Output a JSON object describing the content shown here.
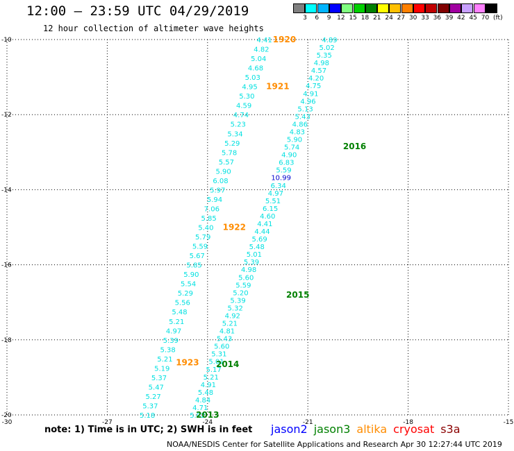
{
  "title": "12:00 – 23:59 UTC 04/29/2019",
  "subtitle": "12 hour collection of altimeter wave heights",
  "color_scale": {
    "unit": "(ft)",
    "bins": [
      {
        "label": "3",
        "color": "#808080"
      },
      {
        "label": "6",
        "color": "#00ffff"
      },
      {
        "label": "9",
        "color": "#00b4ff"
      },
      {
        "label": "12",
        "color": "#0000ff"
      },
      {
        "label": "15",
        "color": "#80ff80"
      },
      {
        "label": "18",
        "color": "#00d000"
      },
      {
        "label": "21",
        "color": "#008000"
      },
      {
        "label": "24",
        "color": "#ffff00"
      },
      {
        "label": "27",
        "color": "#ffc000"
      },
      {
        "label": "30",
        "color": "#ff8000"
      },
      {
        "label": "33",
        "color": "#ff0000"
      },
      {
        "label": "36",
        "color": "#c00000"
      },
      {
        "label": "39",
        "color": "#800000"
      },
      {
        "label": "42",
        "color": "#a000a0"
      },
      {
        "label": "45",
        "color": "#c8a0ff"
      },
      {
        "label": "70",
        "color": "#ff80ff"
      },
      {
        "label": "",
        "color": "#000000"
      }
    ]
  },
  "chart_data": {
    "type": "scatter",
    "title": "12:00 – 23:59 UTC 04/29/2019",
    "subtitle": "12 hour collection of altimeter wave heights",
    "xlabel": "",
    "ylabel": "",
    "xlim": [
      -30,
      -15
    ],
    "ylim": [
      -20,
      -10
    ],
    "x_ticks": [
      -30,
      -27,
      -24,
      -21,
      -18,
      -15
    ],
    "y_ticks": [
      -10,
      -12,
      -14,
      -16,
      -18,
      -20
    ],
    "grid": true,
    "tracks": [
      {
        "name": "altika",
        "color": "#ff8c00",
        "start": [
          -22.3,
          -10.0
        ],
        "end": [
          -25.8,
          -20.0
        ],
        "values": [
          "4.41",
          "4.82",
          "5.04",
          "4.68",
          "5.03",
          "4.95",
          "5.30",
          "4.59",
          "4.74",
          "5.23",
          "5.34",
          "5.29",
          "5.78",
          "5.57",
          "5.90",
          "6.08",
          "5.97",
          "5.94",
          "7.06",
          "5.85",
          "5.40",
          "5.79",
          "5.59",
          "5.67",
          "5.85",
          "5.90",
          "5.54",
          "5.29",
          "5.56",
          "5.48",
          "5.21",
          "4.97",
          "5.39",
          "5.38",
          "5.21",
          "5.19",
          "5.37",
          "5.47",
          "5.27",
          "5.37",
          "5.18"
        ],
        "time_labels": [
          {
            "text": "1920",
            "lat": -10.0,
            "lon": -21.7
          },
          {
            "text": "1921",
            "lat": -11.25,
            "lon": -21.9
          },
          {
            "text": "1922",
            "lat": -15.0,
            "lon": -23.2
          },
          {
            "text": "1923",
            "lat": -18.6,
            "lon": -24.6
          }
        ]
      },
      {
        "name": "jason3",
        "color": "#008000",
        "start": [
          -20.35,
          -10.0
        ],
        "end": [
          -24.3,
          -20.0
        ],
        "values": [
          "4.89",
          "5.02",
          "5.35",
          "4.98",
          "4.57",
          "4.20",
          "4.75",
          "4.91",
          "4.96",
          "5.13",
          "5.43",
          "4.86",
          "4.83",
          "5.90",
          "5.74",
          "4.90",
          "6.83",
          "5.59",
          "10.99",
          "6.34",
          "4.97",
          "5.51",
          "6.15",
          "4.60",
          "4.41",
          "4.44",
          "5.69",
          "5.48",
          "5.01",
          "5.39",
          "4.98",
          "5.60",
          "5.59",
          "5.20",
          "5.39",
          "5.32",
          "4.92",
          "5.21",
          "4.81",
          "5.43",
          "5.60",
          "5.31",
          "5.01",
          "5.17",
          "5.21",
          "4.91",
          "5.48",
          "4.84",
          "4.71",
          "5.02"
        ],
        "time_labels": [
          {
            "text": "2016",
            "lat": -12.85,
            "lon": -19.6
          },
          {
            "text": "2015",
            "lat": -16.8,
            "lon": -21.3
          },
          {
            "text": "2014",
            "lat": -18.65,
            "lon": -23.4
          },
          {
            "text": "2013",
            "lat": -20.0,
            "lon": -24.0
          }
        ]
      }
    ]
  },
  "footer": {
    "note": "note: 1) Time is in UTC; 2) SWH is in feet",
    "credit": "NOAA/NESDIS Center for Satellite Applications and Research   Apr 30 12:27:44 UTC 2019"
  },
  "legend": [
    {
      "label": "jason2",
      "color": "#0000ff"
    },
    {
      "label": "jason3",
      "color": "#008000"
    },
    {
      "label": "altika",
      "color": "#ff8c00"
    },
    {
      "label": "cryosat",
      "color": "#ff0000"
    },
    {
      "label": "s3a",
      "color": "#8b0000"
    }
  ]
}
